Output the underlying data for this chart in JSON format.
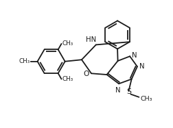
{
  "bg_color": "#ffffff",
  "line_color": "#1a1a1a",
  "line_width": 1.3,
  "font_size": 6.8,
  "figsize": [
    2.52,
    1.87
  ],
  "dpi": 100,
  "xlim": [
    0,
    10
  ],
  "ylim": [
    0,
    7.4
  ]
}
